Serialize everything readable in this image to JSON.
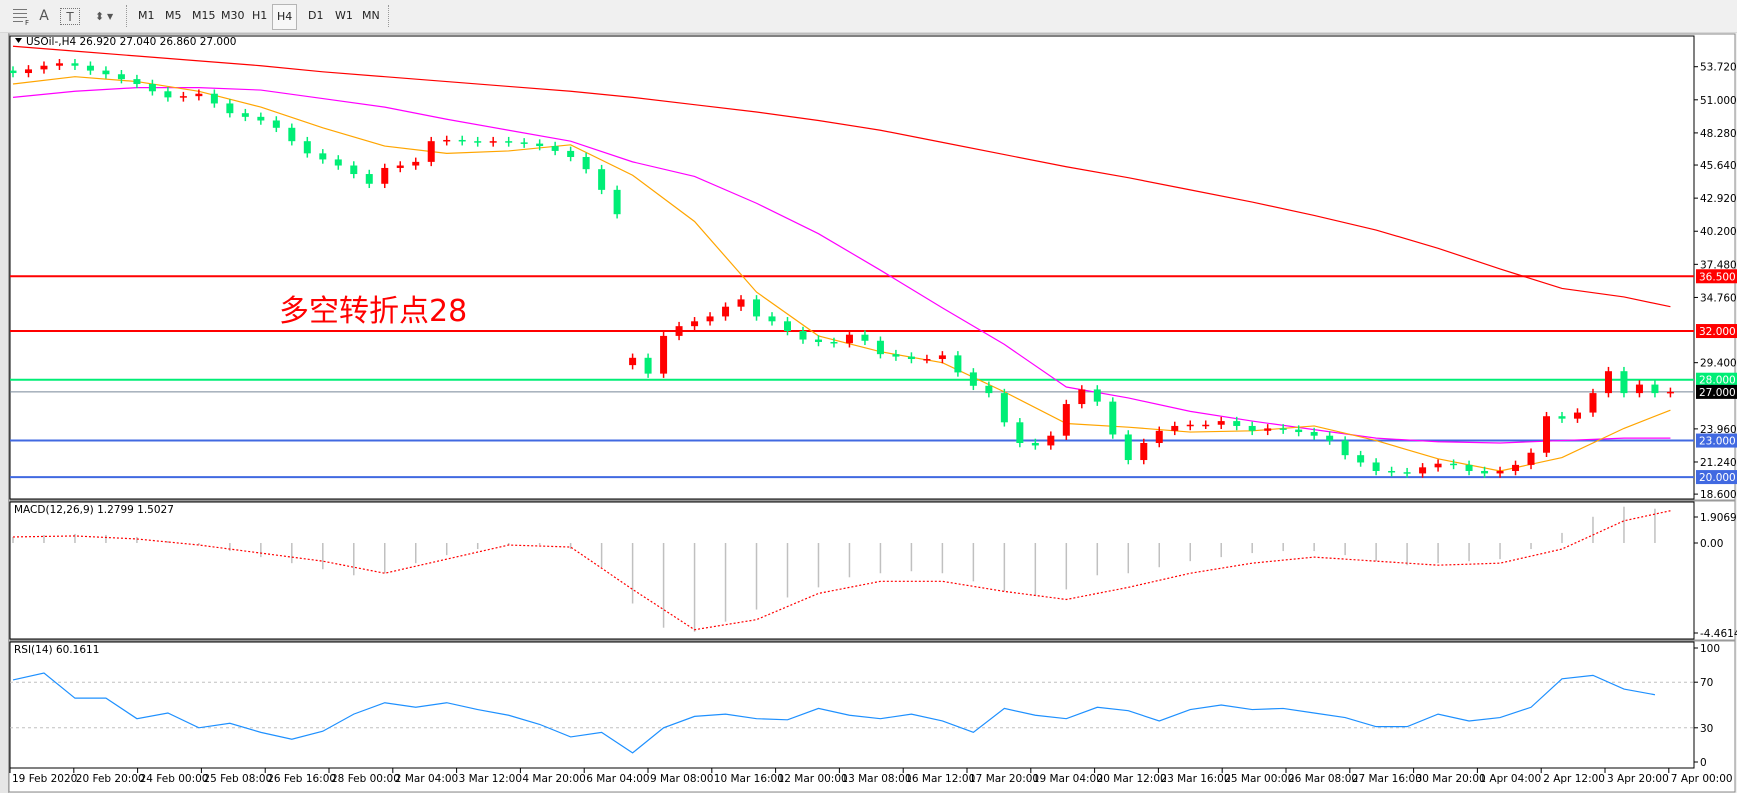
{
  "toolbar": {
    "icons": [
      "period-separator-icon",
      "text-icon",
      "text-label-icon",
      "arrows-icon"
    ],
    "text_icon_label": "A",
    "label_icon_label": "T",
    "timeframes": [
      "M1",
      "M5",
      "M15",
      "M30",
      "H1",
      "H4",
      "D1",
      "W1",
      "MN"
    ],
    "selected_timeframe": "H4"
  },
  "chart_header": "USOil-,H4  26.920 27.040 26.860 27.000",
  "annotation": "多空转折点28",
  "colors": {
    "up": "#ff0000",
    "down": "#00ee76",
    "ma_fast": "#ffa500",
    "ma_mid": "#ff00ff",
    "ma_slow": "#ff0000",
    "rsi": "#1e90ff",
    "macd_hist": "#c0c0c0",
    "macd_signal": "#ff0000"
  },
  "chart_data": [
    {
      "type": "candlestick",
      "title": "USOil-,H4",
      "open_high_low_close_header": [
        26.92,
        27.04,
        26.86,
        27.0
      ],
      "ylim": [
        18.6,
        55.0
      ],
      "y_ticks": [
        "53.720",
        "51.000",
        "48.280",
        "45.640",
        "42.920",
        "40.200",
        "37.480",
        "34.760",
        "29.400",
        "23.960",
        "21.240",
        "18.600"
      ],
      "close": [
        53.2,
        53.5,
        53.8,
        54.0,
        53.8,
        53.4,
        53.1,
        52.7,
        52.3,
        51.7,
        51.2,
        51.3,
        51.5,
        50.7,
        49.9,
        49.6,
        49.3,
        48.7,
        47.6,
        46.6,
        46.1,
        45.6,
        44.9,
        44.1,
        45.4,
        45.6,
        45.9,
        47.6,
        47.7,
        47.6,
        47.5,
        47.6,
        47.5,
        47.4,
        47.2,
        46.8,
        46.3,
        45.3,
        43.6,
        41.6,
        29.8,
        28.5,
        31.6,
        32.4,
        32.8,
        33.2,
        34.0,
        34.6,
        33.2,
        32.8,
        32.0,
        31.3,
        31.1,
        31.0,
        31.7,
        31.2,
        30.1,
        29.9,
        29.7,
        29.7,
        30.0,
        28.6,
        27.5,
        26.9,
        24.5,
        22.8,
        22.6,
        23.4,
        26.0,
        27.2,
        26.2,
        23.5,
        21.4,
        22.8,
        23.8,
        24.2,
        24.3,
        24.3,
        24.6,
        24.2,
        23.8,
        24.0,
        23.9,
        23.7,
        23.4,
        23.0,
        21.8,
        21.2,
        20.5,
        20.4,
        20.3,
        20.8,
        21.1,
        21.0,
        20.5,
        20.3,
        20.5,
        21.0,
        22.0,
        25.0,
        24.8,
        25.3,
        26.9,
        28.7,
        26.9,
        27.6,
        26.9,
        27.0
      ],
      "moving_averages": [
        {
          "color_key": "ma_slow",
          "values": [
            55.4,
            55.0,
            54.6,
            54.2,
            53.8,
            53.3,
            52.9,
            52.5,
            52.1,
            51.7,
            51.2,
            50.6,
            50.0,
            49.3,
            48.5,
            47.5,
            46.5,
            45.5,
            44.6,
            43.6,
            42.6,
            41.5,
            40.3,
            38.8,
            37.1,
            35.5,
            34.8,
            34.0
          ]
        },
        {
          "color_key": "ma_mid",
          "values": [
            51.2,
            51.7,
            52.0,
            52.0,
            51.8,
            51.1,
            50.4,
            49.4,
            48.5,
            47.6,
            45.9,
            44.7,
            42.5,
            40.0,
            37.0,
            33.9,
            30.9,
            27.4,
            26.5,
            25.4,
            24.6,
            23.9,
            23.2,
            22.9,
            22.8,
            23.0,
            23.2,
            23.2
          ]
        },
        {
          "color_key": "ma_fast",
          "values": [
            52.3,
            52.9,
            52.5,
            51.7,
            50.4,
            48.7,
            47.2,
            46.6,
            46.8,
            47.3,
            44.8,
            41.0,
            35.2,
            31.6,
            30.3,
            29.4,
            27.0,
            24.4,
            24.1,
            23.7,
            23.8,
            24.2,
            23.0,
            21.5,
            20.5,
            21.6,
            24.0,
            25.5
          ]
        }
      ],
      "levels": [
        {
          "value": 36.5,
          "label": "36.500",
          "color": "#ff0000"
        },
        {
          "value": 32.0,
          "label": "32.000",
          "color": "#ff0000"
        },
        {
          "value": 28.0,
          "label": "28.000",
          "color": "#00ee76"
        },
        {
          "value": 27.0,
          "label": "27.000",
          "color": "#778899"
        },
        {
          "value": 23.0,
          "label": "23.000",
          "color": "#4169e1"
        },
        {
          "value": 20.0,
          "label": "20.000",
          "color": "#4169e1"
        }
      ],
      "x_labels": [
        "19 Feb 2020",
        "20 Feb 20:00",
        "24 Feb 00:00",
        "25 Feb 08:00",
        "26 Feb 16:00",
        "28 Feb 00:00",
        "2 Mar 04:00",
        "3 Mar 12:00",
        "4 Mar 20:00",
        "6 Mar 04:00",
        "9 Mar 08:00",
        "10 Mar 16:00",
        "12 Mar 00:00",
        "13 Mar 08:00",
        "16 Mar 12:00",
        "17 Mar 20:00",
        "19 Mar 04:00",
        "20 Mar 12:00",
        "23 Mar 16:00",
        "25 Mar 00:00",
        "26 Mar 08:00",
        "27 Mar 16:00",
        "30 Mar 20:00",
        "1 Apr 04:00",
        "2 Apr 12:00",
        "3 Apr 20:00",
        "7 Apr 00:00"
      ]
    },
    {
      "type": "bar+line",
      "title": "MACD(12,26,9) 1.2799 1.5027",
      "ylim": [
        -4.4614,
        1.9069
      ],
      "y_ticks": [
        "1.9069",
        "0.00",
        "-4.4614"
      ],
      "histogram": [
        0.3,
        0.4,
        0.45,
        0.4,
        0.3,
        0.1,
        -0.1,
        -0.4,
        -0.7,
        -1.0,
        -1.3,
        -1.6,
        -1.5,
        -1.0,
        -0.6,
        -0.3,
        -0.1,
        -0.1,
        -0.3,
        -1.2,
        -3.0,
        -4.2,
        -4.4,
        -3.9,
        -3.3,
        -2.7,
        -2.2,
        -1.7,
        -1.5,
        -1.4,
        -1.5,
        -1.9,
        -2.4,
        -2.6,
        -2.3,
        -1.6,
        -1.5,
        -1.2,
        -0.9,
        -0.7,
        -0.5,
        -0.4,
        -0.4,
        -0.6,
        -0.9,
        -1.1,
        -1.0,
        -0.9,
        -0.8,
        -0.3,
        0.5,
        1.3,
        1.8,
        1.7
      ],
      "signal": [
        0.3,
        0.35,
        0.2,
        -0.1,
        -0.5,
        -0.9,
        -1.5,
        -0.8,
        -0.1,
        -0.2,
        -2.3,
        -4.3,
        -3.8,
        -2.5,
        -1.9,
        -1.9,
        -2.4,
        -2.8,
        -2.2,
        -1.5,
        -1.0,
        -0.7,
        -0.9,
        -1.1,
        -1.0,
        -0.3,
        1.1,
        1.6
      ]
    },
    {
      "type": "line",
      "title": "RSI(14) 60.1611",
      "ylim": [
        0,
        100
      ],
      "y_ticks": [
        "100",
        "70",
        "30",
        "0"
      ],
      "levels": [
        70,
        30
      ],
      "values": [
        72,
        78,
        56,
        56,
        38,
        43,
        30,
        34,
        26,
        20,
        27,
        42,
        52,
        48,
        52,
        46,
        41,
        33,
        22,
        26,
        8,
        30,
        40,
        42,
        38,
        37,
        47,
        41,
        38,
        42,
        36,
        26,
        47,
        41,
        38,
        48,
        45,
        36,
        46,
        50,
        46,
        47,
        43,
        39,
        31,
        31,
        42,
        36,
        39,
        48,
        73,
        76,
        64,
        59
      ]
    }
  ]
}
